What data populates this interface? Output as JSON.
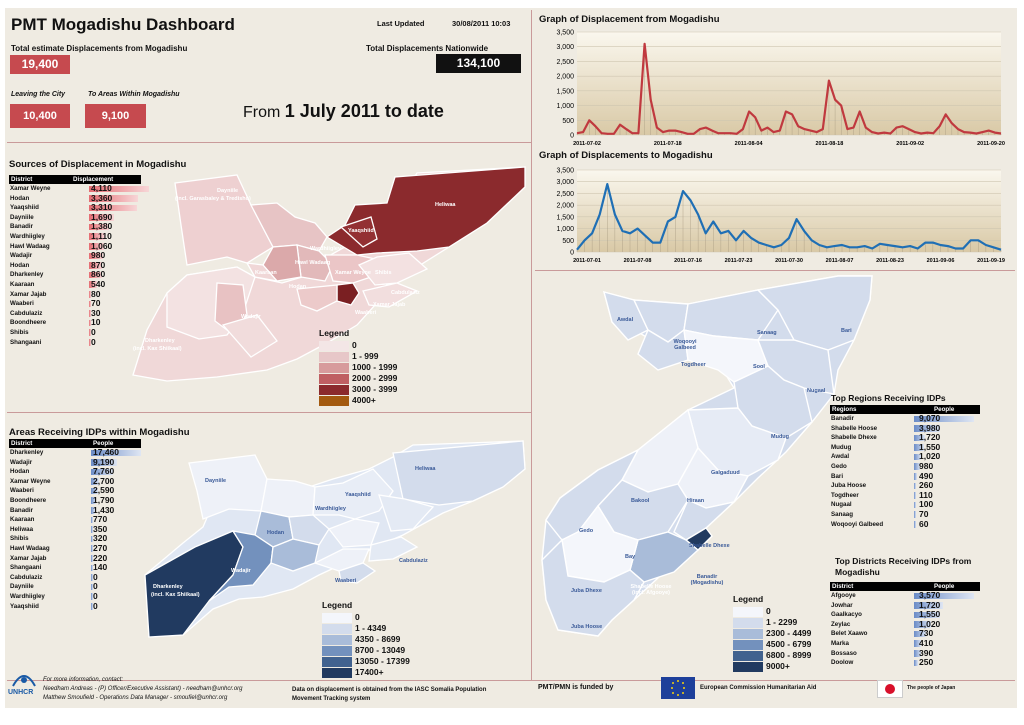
{
  "header": {
    "title": "PMT Mogadishu Dashboard",
    "last_updated_label": "Last Updated",
    "last_updated_value": "30/08/2011 10:03",
    "total_mog_label": "Total estimate Displacements from Mogadishu",
    "total_mog_value": "19,400",
    "total_nat_label": "Total Displacements Nationwide",
    "total_nat_value": "134,100",
    "leaving_label": "Leaving the City",
    "leaving_value": "10,400",
    "within_label": "To Areas Within Mogadishu",
    "within_value": "9,100",
    "from_prefix": "From",
    "from_date": "1 July 2011 to date"
  },
  "sources": {
    "title": "Sources of Displacement in Mogadishu",
    "col_district": "District",
    "col_value": "Displacement",
    "rows": [
      {
        "name": "Xamar Weyne",
        "value": "4,110",
        "num": 4110
      },
      {
        "name": "Hodan",
        "value": "3,360",
        "num": 3360
      },
      {
        "name": "Yaaqshiid",
        "value": "3,310",
        "num": 3310
      },
      {
        "name": "Dayniile",
        "value": "1,690",
        "num": 1690
      },
      {
        "name": "Banadir",
        "value": "1,380",
        "num": 1380
      },
      {
        "name": "Wardhiigley",
        "value": "1,110",
        "num": 1110
      },
      {
        "name": "Hawl Wadaag",
        "value": "1,060",
        "num": 1060
      },
      {
        "name": "Wadajir",
        "value": "980",
        "num": 980
      },
      {
        "name": "Hodan",
        "value": "870",
        "num": 870
      },
      {
        "name": "Dharkenley",
        "value": "860",
        "num": 860
      },
      {
        "name": "Kaaraan",
        "value": "540",
        "num": 540
      },
      {
        "name": "Xamar Jajab",
        "value": "80",
        "num": 80
      },
      {
        "name": "Waaberi",
        "value": "70",
        "num": 70
      },
      {
        "name": "Cabdulaziz",
        "value": "30",
        "num": 30
      },
      {
        "name": "Boondheere",
        "value": "10",
        "num": 10
      },
      {
        "name": "Shibis",
        "value": "0",
        "num": 0
      },
      {
        "name": "Shangaani",
        "value": "0",
        "num": 0
      }
    ],
    "legend_title": "Legend",
    "legend": [
      {
        "label": "0",
        "color": "#f3e6e6"
      },
      {
        "label": "1 - 999",
        "color": "#e7c7c8"
      },
      {
        "label": "1000 - 1999",
        "color": "#d79b9c"
      },
      {
        "label": "2000 - 2999",
        "color": "#bf5f62"
      },
      {
        "label": "3000 - 3999",
        "color": "#8b2a2c"
      },
      {
        "label": "4000+",
        "color": "#a35a10"
      }
    ],
    "map_labels": [
      "Dayniile",
      "(incl. Garasbaley & Tredisho)",
      "Heliwaa",
      "Yaaqshiid",
      "Kaaraan",
      "Shibis",
      "Xamar Weyne",
      "Xamar Jajab",
      "Waaberi",
      "Hawl Wadaag",
      "Wardhiigley",
      "Hodan",
      "Wadajir",
      "Dharkenley",
      "(incl. Kax Shiikaal)",
      "Banadir",
      "Bondhere",
      "Shangaani",
      "Cabdulaziz"
    ]
  },
  "areas": {
    "title": "Areas Receiving IDPs within Mogadishu",
    "col_district": "District",
    "col_value": "People",
    "rows": [
      {
        "name": "Dharkenley",
        "value": "17,460",
        "num": 17460
      },
      {
        "name": "Wadajir",
        "value": "9,190",
        "num": 9190
      },
      {
        "name": "Hodan",
        "value": "7,760",
        "num": 7760
      },
      {
        "name": "Xamar Weyne",
        "value": "2,700",
        "num": 2700
      },
      {
        "name": "Waaberi",
        "value": "2,590",
        "num": 2590
      },
      {
        "name": "Boondheere",
        "value": "1,790",
        "num": 1790
      },
      {
        "name": "Banadir",
        "value": "1,430",
        "num": 1430
      },
      {
        "name": "Kaaraan",
        "value": "770",
        "num": 770
      },
      {
        "name": "Heliwaa",
        "value": "350",
        "num": 350
      },
      {
        "name": "Shibis",
        "value": "320",
        "num": 320
      },
      {
        "name": "Hawl Wadaag",
        "value": "270",
        "num": 270
      },
      {
        "name": "Xamar Jajab",
        "value": "220",
        "num": 220
      },
      {
        "name": "Shangaani",
        "value": "140",
        "num": 140
      },
      {
        "name": "Cabdulaziz",
        "value": "0",
        "num": 0
      },
      {
        "name": "Dayniile",
        "value": "0",
        "num": 0
      },
      {
        "name": "Wardhiigley",
        "value": "0",
        "num": 0
      },
      {
        "name": "Yaaqshiid",
        "value": "0",
        "num": 0
      }
    ],
    "legend_title": "Legend",
    "legend": [
      {
        "label": "0",
        "color": "#f4f6fb"
      },
      {
        "label": "1 - 4349",
        "color": "#d3dcec"
      },
      {
        "label": "4350 - 8699",
        "color": "#a9bcd9"
      },
      {
        "label": "8700 - 13049",
        "color": "#7391bd"
      },
      {
        "label": "13050 - 17399",
        "color": "#41628f"
      },
      {
        "label": "17400+",
        "color": "#213a60"
      }
    ]
  },
  "graph1": {
    "title": "Graph of Displacement from Mogadishu",
    "ymax": 3500,
    "yticks": [
      "0",
      "500",
      "1,000",
      "1,500",
      "2,000",
      "2,500",
      "3,000",
      "3,500"
    ],
    "xlabels": [
      "2011-07-02",
      "2011-07-18",
      "2011-08-04",
      "2011-08-18",
      "2011-09-02",
      "2011-09-20"
    ],
    "values": [
      60,
      100,
      500,
      300,
      60,
      40,
      40,
      350,
      200,
      60,
      60,
      3100,
      1200,
      250,
      100,
      150,
      150,
      100,
      40,
      40,
      200,
      250,
      150,
      60,
      60,
      60,
      40,
      200,
      800,
      600,
      150,
      250,
      100,
      150,
      800,
      700,
      300,
      200,
      150,
      100,
      200,
      1850,
      1200,
      1000,
      200,
      250,
      800,
      250,
      100,
      50,
      80,
      50,
      250,
      300,
      200,
      100,
      50,
      80,
      60,
      300,
      700,
      400,
      200,
      100,
      80,
      50,
      100,
      150,
      80,
      50
    ]
  },
  "graph2": {
    "title": "Graph of Displacements to Mogadishu",
    "ymax": 3500,
    "yticks": [
      "0",
      "500",
      "1,000",
      "1,500",
      "2,000",
      "2,500",
      "3,000",
      "3,500"
    ],
    "xlabels": [
      "2011-07-01",
      "2011-07-08",
      "2011-07-16",
      "2011-07-23",
      "2011-07-30",
      "2011-08-07",
      "2011-08-23",
      "2011-09-06",
      "2011-09-19"
    ],
    "values": [
      100,
      500,
      800,
      1600,
      2900,
      1600,
      900,
      800,
      1000,
      700,
      400,
      400,
      1300,
      1500,
      2600,
      2200,
      1600,
      800,
      1300,
      800,
      900,
      500,
      900,
      600,
      400,
      300,
      200,
      300,
      600,
      1400,
      900,
      500,
      300,
      200,
      250,
      300,
      200,
      200,
      250,
      150,
      350,
      300,
      250,
      200,
      250,
      150,
      400,
      400,
      300,
      250,
      150,
      150,
      500,
      500,
      300,
      200,
      100
    ]
  },
  "somalia": {
    "labels": [
      "Awdal",
      "Woqooyi Galbeed",
      "Sanaag",
      "Bari",
      "Togdheer",
      "Sool",
      "Nugaal",
      "Mudug",
      "Galgaduud",
      "Bakool",
      "Hiraan",
      "Gedo",
      "Bay",
      "Shabelle Dhexe",
      "Banadir (Mogadishu)",
      "Shabelle Hoose (incl. Afgooye)",
      "Juba Dhexe",
      "Juba Hoose"
    ],
    "legend_title": "Legend",
    "legend": [
      {
        "label": "0",
        "color": "#f4f6fb"
      },
      {
        "label": "1 - 2299",
        "color": "#d3dcec"
      },
      {
        "label": "2300 - 4499",
        "color": "#a9bcd9"
      },
      {
        "label": "4500 - 6799",
        "color": "#7391bd"
      },
      {
        "label": "6800 - 8999",
        "color": "#41628f"
      },
      {
        "label": "9000+",
        "color": "#213a60"
      }
    ]
  },
  "regions": {
    "title": "Top Regions Receiving IDPs",
    "col_region": "Regions",
    "col_value": "People",
    "rows": [
      {
        "name": "Banadir",
        "value": "9,070",
        "num": 9070
      },
      {
        "name": "Shabelle Hoose",
        "value": "3,980",
        "num": 3980
      },
      {
        "name": "Shabelle Dhexe",
        "value": "1,720",
        "num": 1720
      },
      {
        "name": "Mudug",
        "value": "1,550",
        "num": 1550
      },
      {
        "name": "Awdal",
        "value": "1,020",
        "num": 1020
      },
      {
        "name": "Gedo",
        "value": "980",
        "num": 980
      },
      {
        "name": "Bari",
        "value": "490",
        "num": 490
      },
      {
        "name": "Juba Hoose",
        "value": "260",
        "num": 260
      },
      {
        "name": "Togdheer",
        "value": "110",
        "num": 110
      },
      {
        "name": "Nugaal",
        "value": "100",
        "num": 100
      },
      {
        "name": "Sanaag",
        "value": "70",
        "num": 70
      },
      {
        "name": "Woqooyi Galbeed",
        "value": "60",
        "num": 60
      }
    ]
  },
  "districts": {
    "title": "Top Districts Receiving IDPs from Mogadishu",
    "col_district": "District",
    "col_value": "People",
    "rows": [
      {
        "name": "Afgooye",
        "value": "3,570",
        "num": 3570
      },
      {
        "name": "Jowhar",
        "value": "1,720",
        "num": 1720
      },
      {
        "name": "Gaalkacyo",
        "value": "1,550",
        "num": 1550
      },
      {
        "name": "Zeylac",
        "value": "1,020",
        "num": 1020
      },
      {
        "name": "Belet Xaawo",
        "value": "730",
        "num": 730
      },
      {
        "name": "Marka",
        "value": "410",
        "num": 410
      },
      {
        "name": "Bossaso",
        "value": "390",
        "num": 390
      },
      {
        "name": "Doolow",
        "value": "250",
        "num": 250
      }
    ]
  },
  "footer": {
    "logo": "UNHCR",
    "contact1": "For more information, contact:",
    "contact2": "Needham Andreas - (P) Officer/Executive Assistant) - needham@unhcr.org",
    "contact3": "Matthew Smoufield - Operations Data Manager - smoufiel@unhcr.org",
    "data_note1": "Data on displacement is obtained from the IASC Somalia Population",
    "data_note2": "Movement Tracking system",
    "funded": "PMT/PMN is funded by",
    "eu": "European Commission Humanitarian Aid",
    "japan": "The people of Japan"
  }
}
